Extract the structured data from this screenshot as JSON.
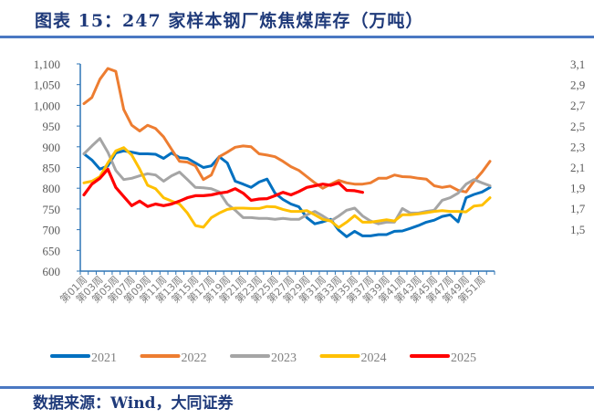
{
  "header": {
    "title": "图表 15：247 家样本钢厂炼焦煤库存（万吨）"
  },
  "footer": {
    "source": "数据来源：Wind，大同证券"
  },
  "right_axis_fragment": [
    "3,1",
    "2,9",
    "2,7",
    "2,5",
    "2,3",
    "2,1",
    "1,9",
    "1,7",
    "1,5"
  ],
  "chart_data": {
    "type": "line",
    "title": "247 家样本钢厂炼焦煤库存（万吨）",
    "ylim": [
      600,
      1100
    ],
    "yticks": [
      "600",
      "650",
      "700",
      "750",
      "800",
      "850",
      "900",
      "950",
      "1,000",
      "1,050",
      "1,100"
    ],
    "ytick_values": [
      600,
      650,
      700,
      750,
      800,
      850,
      900,
      950,
      1000,
      1050,
      1100
    ],
    "xtick_labels": [
      "第01周",
      "第03周",
      "第05周",
      "第07周",
      "第09周",
      "第11周",
      "第13周",
      "第15周",
      "第17周",
      "第19周",
      "第21周",
      "第23周",
      "第25周",
      "第27周",
      "第29周",
      "第31周",
      "第33周",
      "第35周",
      "第37周",
      "第39周",
      "第41周",
      "第43周",
      "第45周",
      "第47周",
      "第49周",
      "第51周"
    ],
    "weeks": 52,
    "legend_position": "bottom",
    "series": [
      {
        "name": "2021",
        "color": "#0070C0",
        "values": [
          883,
          868,
          846,
          854,
          885,
          890,
          887,
          883,
          883,
          882,
          872,
          885,
          874,
          872,
          861,
          850,
          854,
          876,
          861,
          817,
          810,
          802,
          815,
          822,
          788,
          773,
          762,
          755,
          729,
          714,
          719,
          725,
          699,
          683,
          696,
          685,
          685,
          688,
          688,
          696,
          697,
          703,
          710,
          718,
          723,
          732,
          736,
          719,
          777,
          785,
          791,
          802
        ]
      },
      {
        "name": "2022",
        "color": "#ED7D31",
        "values": [
          1004,
          1019,
          1063,
          1089,
          1082,
          990,
          952,
          938,
          952,
          944,
          924,
          894,
          865,
          863,
          854,
          821,
          832,
          876,
          887,
          899,
          902,
          900,
          883,
          880,
          876,
          865,
          852,
          843,
          828,
          813,
          800,
          810,
          819,
          813,
          810,
          810,
          813,
          824,
          824,
          832,
          828,
          827,
          824,
          822,
          806,
          802,
          805,
          795,
          791,
          817,
          839,
          865
        ]
      },
      {
        "name": "2023",
        "color": "#A5A5A5",
        "values": [
          883,
          902,
          920,
          887,
          843,
          821,
          824,
          830,
          835,
          832,
          817,
          830,
          839,
          821,
          802,
          801,
          799,
          791,
          762,
          747,
          729,
          729,
          727,
          727,
          725,
          727,
          725,
          725,
          736,
          744,
          733,
          721,
          733,
          747,
          752,
          733,
          721,
          714,
          718,
          718,
          751,
          740,
          740,
          744,
          747,
          771,
          777,
          788,
          810,
          821,
          813,
          806
        ]
      },
      {
        "name": "2024",
        "color": "#FFC000",
        "values": [
          813,
          817,
          828,
          861,
          890,
          898,
          880,
          846,
          807,
          799,
          777,
          769,
          762,
          740,
          710,
          706,
          729,
          740,
          749,
          752,
          752,
          751,
          751,
          756,
          755,
          749,
          744,
          744,
          746,
          736,
          725,
          721,
          705,
          718,
          734,
          718,
          718,
          721,
          724,
          721,
          736,
          736,
          738,
          741,
          744,
          746,
          744,
          744,
          743,
          757,
          759,
          777
        ]
      },
      {
        "name": "2025",
        "color": "#FF0000",
        "values": [
          784,
          810,
          824,
          846,
          802,
          780,
          758,
          769,
          756,
          762,
          758,
          762,
          769,
          777,
          782,
          782,
          784,
          788,
          791,
          799,
          788,
          771,
          774,
          775,
          782,
          790,
          784,
          792,
          802,
          806,
          810,
          807,
          813,
          795,
          794,
          790
        ]
      }
    ]
  }
}
